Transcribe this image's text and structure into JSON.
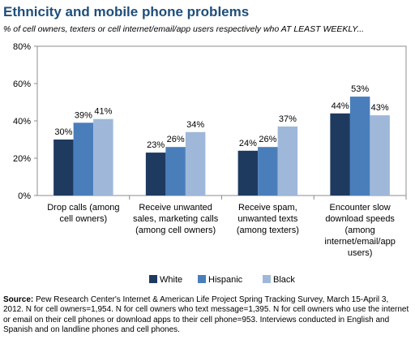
{
  "header": {
    "title": "Ethnicity and mobile phone problems",
    "subtitle": "% of cell owners, texters or cell internet/email/app users respectively who AT LEAST WEEKLY..."
  },
  "chart_data": {
    "type": "bar",
    "title": "Ethnicity and mobile phone problems",
    "ylim": [
      0,
      80
    ],
    "yticks": [
      "0%",
      "20%",
      "40%",
      "60%",
      "80%"
    ],
    "categories": [
      [
        "Drop calls (among",
        "cell owners)"
      ],
      [
        "Receive unwanted",
        "sales, marketing calls",
        "(among cell owners)"
      ],
      [
        "Receive spam,",
        "unwanted texts",
        "(among texters)"
      ],
      [
        "Encounter slow",
        "download speeds",
        "(among",
        "internet/email/app",
        "users)"
      ]
    ],
    "series": [
      {
        "name": "White",
        "color": "#1f3a5f",
        "values": [
          30,
          23,
          24,
          44
        ],
        "labels": [
          "30%",
          "23%",
          "24%",
          "44%"
        ]
      },
      {
        "name": "Hispanic",
        "color": "#4a7ebb",
        "values": [
          39,
          26,
          26,
          53
        ],
        "labels": [
          "39%",
          "26%",
          "26%",
          "53%"
        ]
      },
      {
        "name": "Black",
        "color": "#9fb8d9",
        "values": [
          41,
          34,
          37,
          43
        ],
        "labels": [
          "41%",
          "34%",
          "37%",
          "43%"
        ]
      }
    ],
    "legend_position": "bottom"
  },
  "source": {
    "label": "Source:",
    "text": "Pew Research Center's Internet & American Life Project Spring Tracking Survey, March 15-April 3, 2012. N for cell owners=1,954. N for cell owners who text message=1,395. N for cell owners who use the internet or email on their cell phones or download apps to their cell phone=953. Interviews conducted in English and Spanish and on landline phones and cell phones."
  }
}
